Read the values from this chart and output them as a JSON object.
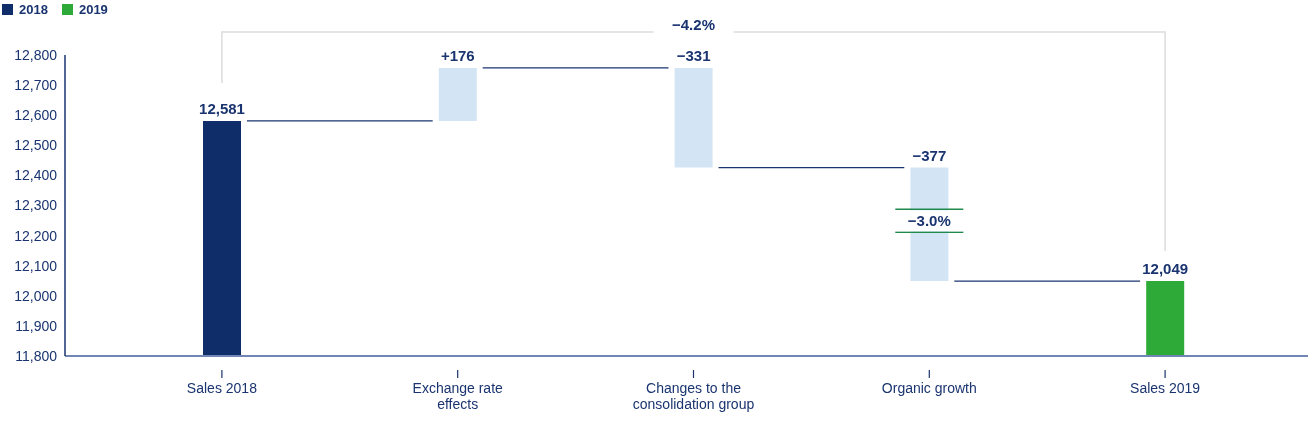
{
  "chart_data": {
    "type": "bar",
    "categories": [
      "Sales 2018",
      "Exchange rate effects",
      "Changes to the consolidation group",
      "Organic growth",
      "Sales 2019"
    ],
    "series": [
      {
        "name": "2018",
        "color": "#0f2d69",
        "values": [
          12581,
          null,
          null,
          null,
          null
        ]
      },
      {
        "color": "#d3e5f4",
        "values": [
          null,
          176,
          -331,
          -377,
          null
        ],
        "base": [
          null,
          12581,
          12757,
          12426,
          null
        ]
      },
      {
        "name": "2019",
        "color": "#2eaa38",
        "values": [
          null,
          null,
          null,
          null,
          12049
        ]
      }
    ],
    "value_labels": [
      "12,581",
      "+176",
      "−331",
      "−377",
      "12,049"
    ],
    "annotations": [
      "−4.2%",
      "−3.0%"
    ],
    "ylim": [
      11800,
      12800
    ],
    "yticks": [
      {
        "value": 11800,
        "label": "11,800"
      },
      {
        "value": 11900,
        "label": "11,900"
      },
      {
        "value": 12000,
        "label": "12,000"
      },
      {
        "value": 12100,
        "label": "12,100"
      },
      {
        "value": 12200,
        "label": "12,200"
      },
      {
        "value": 12300,
        "label": "12,300"
      },
      {
        "value": 12400,
        "label": "12,400"
      },
      {
        "value": 12500,
        "label": "12,500"
      },
      {
        "value": 12600,
        "label": "12,600"
      },
      {
        "value": 12700,
        "label": "12,700"
      },
      {
        "value": 12800,
        "label": "12,800"
      }
    ],
    "grid": false,
    "legend": "top left"
  }
}
